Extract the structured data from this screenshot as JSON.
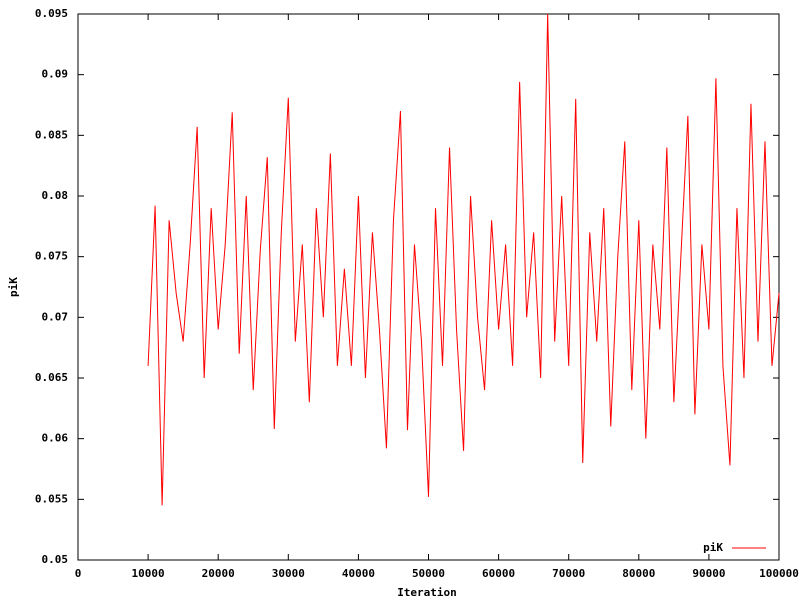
{
  "chart_data": {
    "type": "line",
    "x_label": "Iteration",
    "y_label": "piK",
    "xlim": [
      0,
      100000
    ],
    "ylim": [
      0.05,
      0.095
    ],
    "xticks": [
      0,
      10000,
      20000,
      30000,
      40000,
      50000,
      60000,
      70000,
      80000,
      90000,
      100000
    ],
    "yticks": [
      0.05,
      0.055,
      0.06,
      0.065,
      0.07,
      0.075,
      0.08,
      0.085,
      0.09,
      0.095
    ],
    "legend": "bottom right",
    "x": [
      10000,
      11000,
      12000,
      13000,
      14000,
      15000,
      16000,
      17000,
      18000,
      19000,
      20000,
      21000,
      22000,
      23000,
      24000,
      25000,
      26000,
      27000,
      28000,
      29000,
      30000,
      31000,
      32000,
      33000,
      34000,
      35000,
      36000,
      37000,
      38000,
      39000,
      40000,
      41000,
      42000,
      43000,
      44000,
      45000,
      46000,
      47000,
      48000,
      49000,
      50000,
      51000,
      52000,
      53000,
      54000,
      55000,
      56000,
      57000,
      58000,
      59000,
      60000,
      61000,
      62000,
      63000,
      64000,
      65000,
      66000,
      67000,
      68000,
      69000,
      70000,
      71000,
      72000,
      73000,
      74000,
      75000,
      76000,
      77000,
      78000,
      79000,
      80000,
      81000,
      82000,
      83000,
      84000,
      85000,
      86000,
      87000,
      88000,
      89000,
      90000,
      91000,
      92000,
      93000,
      94000,
      95000,
      96000,
      97000,
      98000,
      99000,
      100000
    ],
    "series": [
      {
        "name": "piK",
        "color": "#ff0000",
        "values": [
          0.066,
          0.0792,
          0.0545,
          0.078,
          0.072,
          0.068,
          0.076,
          0.0857,
          0.065,
          0.079,
          0.069,
          0.076,
          0.0869,
          0.067,
          0.08,
          0.064,
          0.0755,
          0.0832,
          0.0608,
          0.077,
          0.0881,
          0.068,
          0.076,
          0.063,
          0.079,
          0.07,
          0.0835,
          0.066,
          0.074,
          0.066,
          0.08,
          0.065,
          0.077,
          0.069,
          0.0592,
          0.078,
          0.087,
          0.0607,
          0.076,
          0.068,
          0.0552,
          0.079,
          0.066,
          0.084,
          0.069,
          0.059,
          0.08,
          0.07,
          0.064,
          0.078,
          0.069,
          0.076,
          0.066,
          0.0894,
          0.07,
          0.077,
          0.065,
          0.095,
          0.068,
          0.08,
          0.066,
          0.088,
          0.058,
          0.077,
          0.068,
          0.079,
          0.061,
          0.075,
          0.0845,
          0.064,
          0.078,
          0.06,
          0.076,
          0.069,
          0.084,
          0.063,
          0.075,
          0.0866,
          0.062,
          0.076,
          0.069,
          0.0897,
          0.066,
          0.0578,
          0.079,
          0.065,
          0.0876,
          0.068,
          0.0845,
          0.066,
          0.072
        ]
      }
    ]
  }
}
